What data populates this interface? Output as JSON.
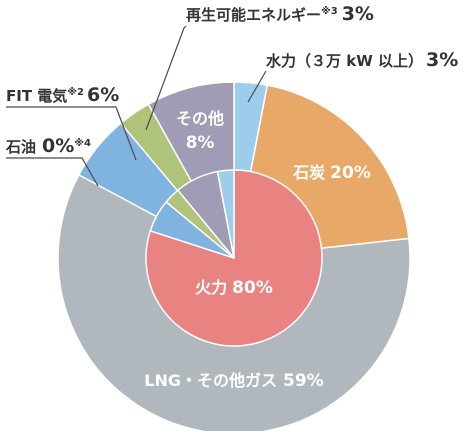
{
  "chart_data": {
    "type": "pie",
    "subtype": "nested-donut",
    "colors": {
      "background": "#ffffff",
      "text_dark": "#333333",
      "text_light": "#ffffff",
      "leader_line": "#4a4a4a"
    },
    "outer_ring": {
      "slices": [
        {
          "id": "hydro",
          "label": "水力（３万 kW 以上）",
          "value_label": "3%",
          "value": 3,
          "color": "#9ccdeb"
        },
        {
          "id": "coal",
          "label": "石炭",
          "value_label": "20%",
          "value": 20,
          "color": "#e8a868"
        },
        {
          "id": "lng",
          "label": "LNG・その他ガス",
          "value_label": "59%",
          "value": 59,
          "color": "#b1b8bd"
        },
        {
          "id": "oil",
          "label": "石油",
          "value_label": "0%",
          "note": "※4",
          "value": 0,
          "color": "#b1b8bd"
        },
        {
          "id": "fit",
          "label": "FIT 電気",
          "value_label": "6%",
          "note": "※2",
          "value": 6,
          "color": "#80b4e0"
        },
        {
          "id": "renewable",
          "label": "再生可能エネルギー",
          "value_label": "3%",
          "note": "※3",
          "value": 3,
          "color": "#afc37a"
        },
        {
          "id": "other",
          "label": "その他",
          "value_label": "8%",
          "value": 8,
          "color": "#a09cb5"
        }
      ]
    },
    "inner_ring": {
      "slices": [
        {
          "id": "thermal",
          "label": "火力",
          "value_label": "80%",
          "value": 80,
          "color": "#e98381"
        },
        {
          "id": "fit_inner",
          "value": 6,
          "color": "#80b4e0"
        },
        {
          "id": "renewable_inner",
          "value": 3,
          "color": "#afc37a"
        },
        {
          "id": "other_inner",
          "value": 8,
          "color": "#a09cb5"
        },
        {
          "id": "hydro_inner",
          "value": 3,
          "color": "#9ccdeb"
        }
      ]
    }
  }
}
